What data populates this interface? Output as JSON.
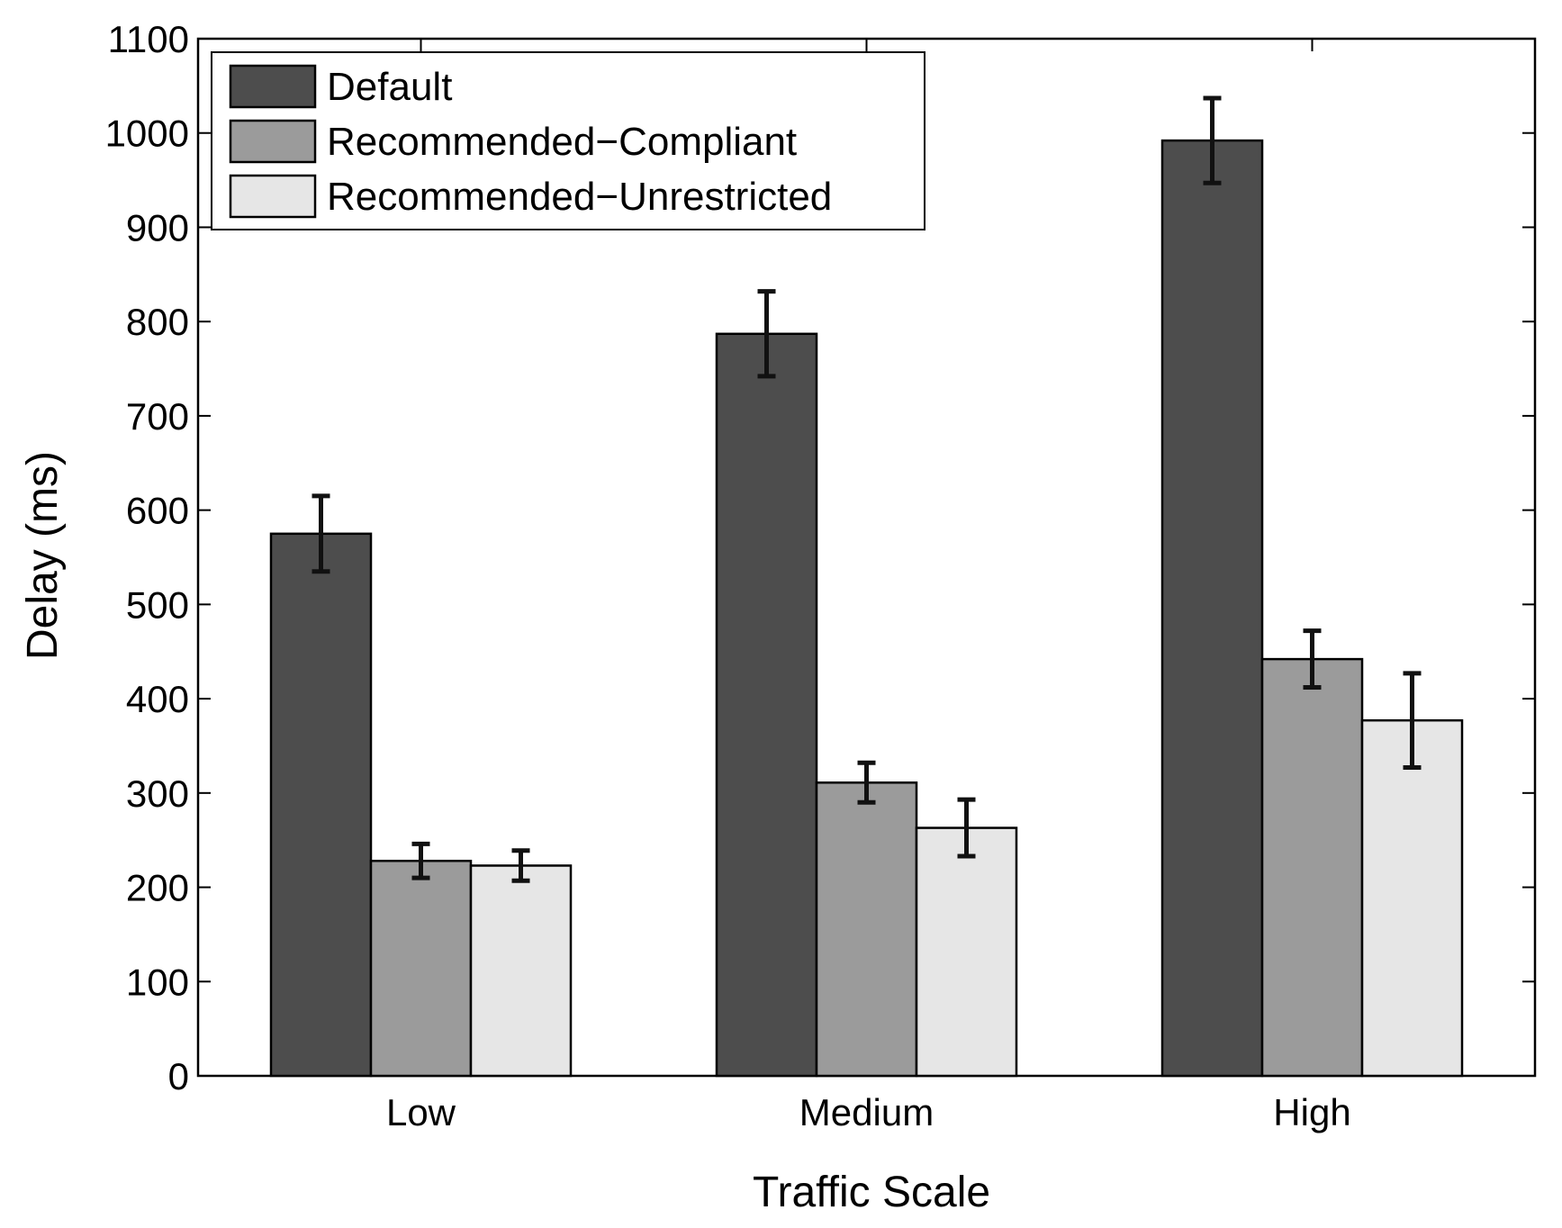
{
  "chart_data": {
    "type": "bar",
    "categories": [
      "Low",
      "Medium",
      "High"
    ],
    "series": [
      {
        "name": "Default",
        "values": [
          575,
          787,
          992
        ],
        "errors": [
          40,
          45,
          45
        ],
        "color": "#4d4d4d"
      },
      {
        "name": "Recommended−Compliant",
        "values": [
          228,
          311,
          442
        ],
        "errors": [
          18,
          21,
          30
        ],
        "color": "#9b9b9b"
      },
      {
        "name": "Recommended−Unrestricted",
        "values": [
          223,
          263,
          377
        ],
        "errors": [
          16,
          30,
          50
        ],
        "color": "#e6e6e6"
      }
    ],
    "xlabel": "Traffic Scale",
    "ylabel": "Delay (ms)",
    "ylim": [
      0,
      1100
    ],
    "yticks": [
      0,
      100,
      200,
      300,
      400,
      500,
      600,
      700,
      800,
      900,
      1000,
      1100
    ],
    "legend_position": "top-left",
    "grid": false
  }
}
